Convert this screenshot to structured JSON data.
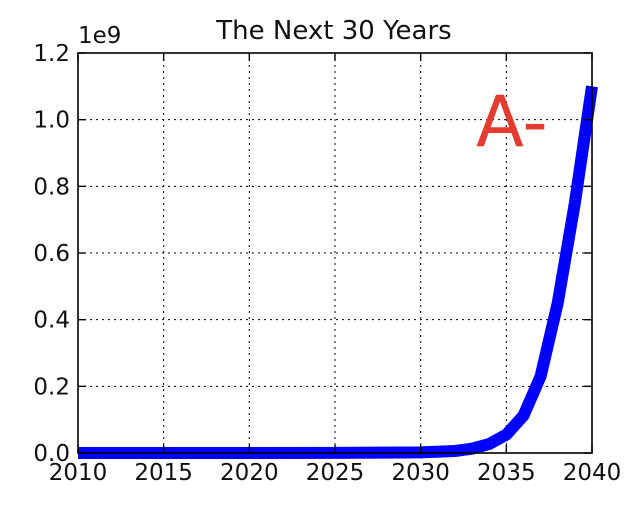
{
  "chart_data": {
    "type": "line",
    "title": "The Next 30 Years",
    "xlabel": "",
    "ylabel": "",
    "xlim": [
      2010,
      2040
    ],
    "ylim": [
      0,
      1.2
    ],
    "y_multiplier_label": "1e9",
    "x_ticks": [
      "2010",
      "2015",
      "2020",
      "2025",
      "2030",
      "2035",
      "2040"
    ],
    "y_ticks": [
      "0.0",
      "0.2",
      "0.4",
      "0.6",
      "0.8",
      "1.0",
      "1.2"
    ],
    "grid": true,
    "annotation": "A-",
    "series": [
      {
        "color": "#0000ff",
        "x": [
          2010,
          2015,
          2020,
          2025,
          2030,
          2032,
          2033,
          2034,
          2035,
          2036,
          2037,
          2038,
          2039,
          2040
        ],
        "y": [
          0,
          0,
          0,
          0.0002,
          0.002,
          0.006,
          0.013,
          0.027,
          0.055,
          0.112,
          0.23,
          0.45,
          0.75,
          1.1
        ]
      }
    ]
  }
}
